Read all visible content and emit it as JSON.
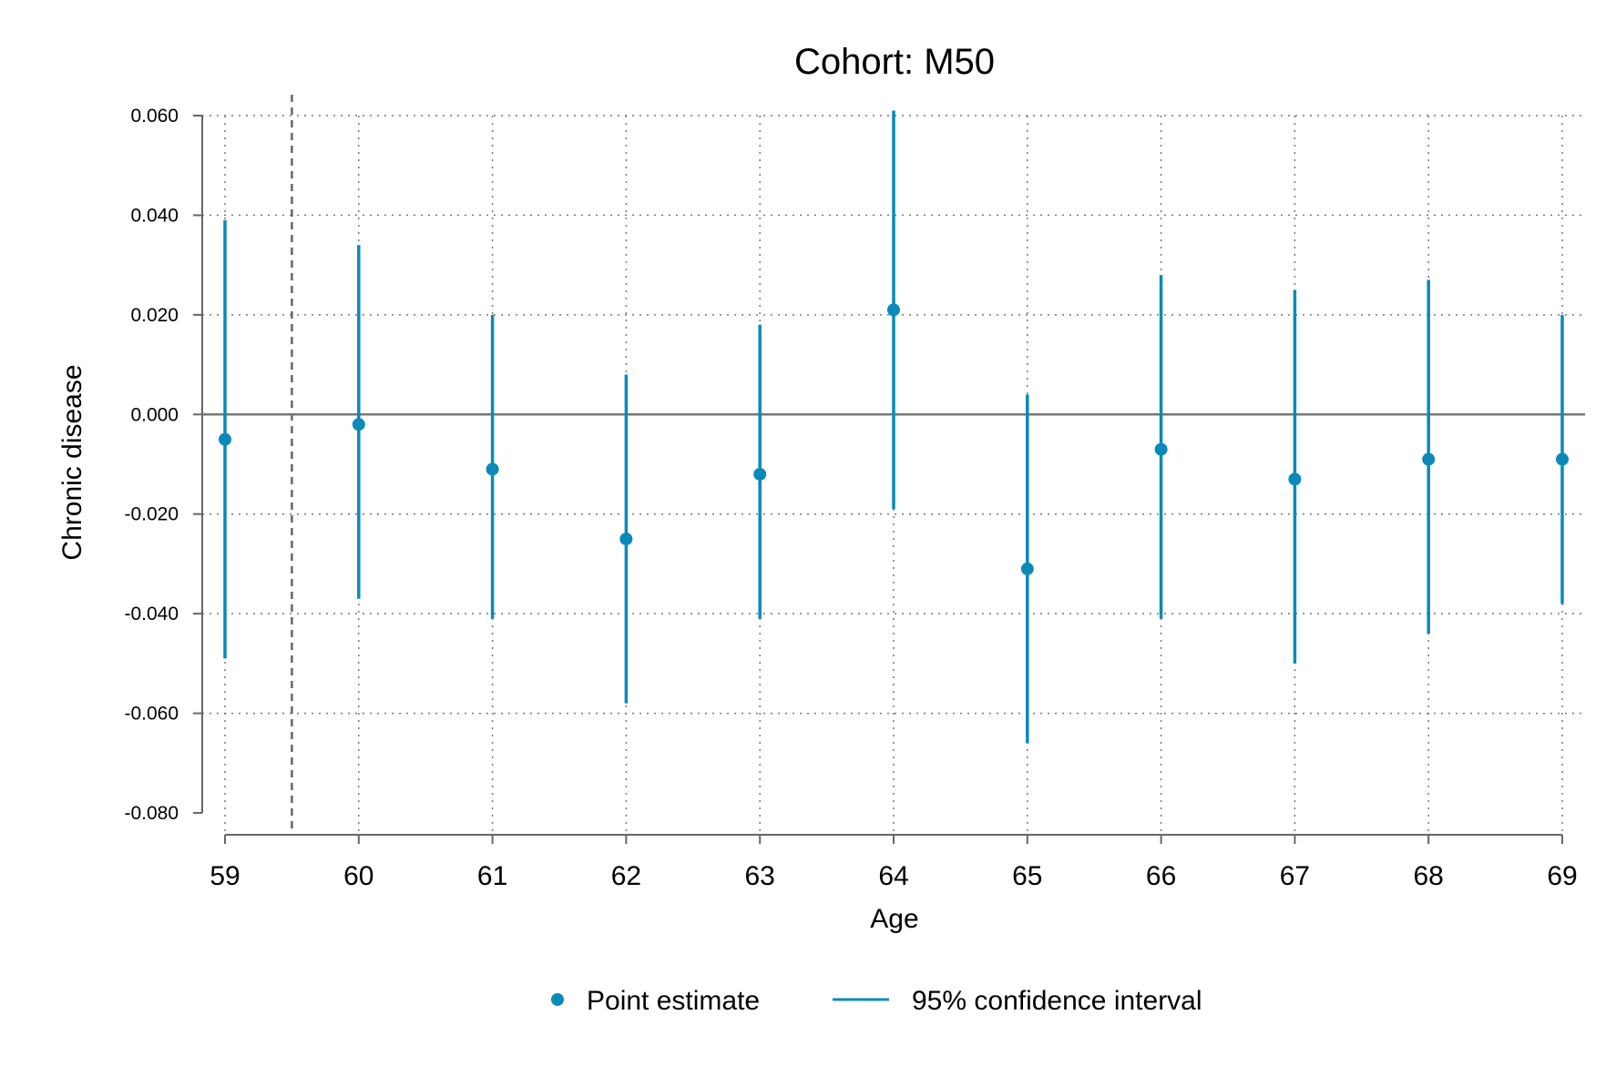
{
  "chart_data": {
    "type": "scatter",
    "title": "Cohort: M50",
    "xlabel": "Age",
    "ylabel": "Chronic disease",
    "xlim": [
      59,
      69
    ],
    "ylim": [
      -0.08,
      0.06
    ],
    "x_ticks": [
      "59",
      "60",
      "61",
      "62",
      "63",
      "64",
      "65",
      "66",
      "67",
      "68",
      "69"
    ],
    "y_ticks": [
      "0.060",
      "0.040",
      "0.020",
      "0.000",
      "-0.020",
      "-0.040",
      "-0.060",
      "-0.080"
    ],
    "grid": true,
    "reference_line_x": 59.5,
    "zero_line": true,
    "color": "#0a8ab8",
    "legend_position": "bottom",
    "legend": {
      "point": "Point estimate",
      "ci": "95% confidence interval"
    },
    "series": [
      {
        "name": "Point estimate",
        "x": [
          59,
          60,
          61,
          62,
          63,
          64,
          65,
          66,
          67,
          68,
          69
        ],
        "values": [
          -0.005,
          -0.002,
          -0.011,
          -0.025,
          -0.012,
          0.021,
          -0.031,
          -0.007,
          -0.013,
          -0.009,
          -0.009
        ]
      },
      {
        "name": "95% confidence interval",
        "x": [
          59,
          60,
          61,
          62,
          63,
          64,
          65,
          66,
          67,
          68,
          69
        ],
        "lower": [
          -0.049,
          -0.037,
          -0.041,
          -0.058,
          -0.041,
          -0.019,
          -0.066,
          -0.041,
          -0.05,
          -0.044,
          -0.038
        ],
        "upper": [
          0.039,
          0.034,
          0.02,
          0.008,
          0.018,
          0.061,
          0.004,
          0.028,
          0.025,
          0.027,
          0.02
        ]
      }
    ]
  }
}
